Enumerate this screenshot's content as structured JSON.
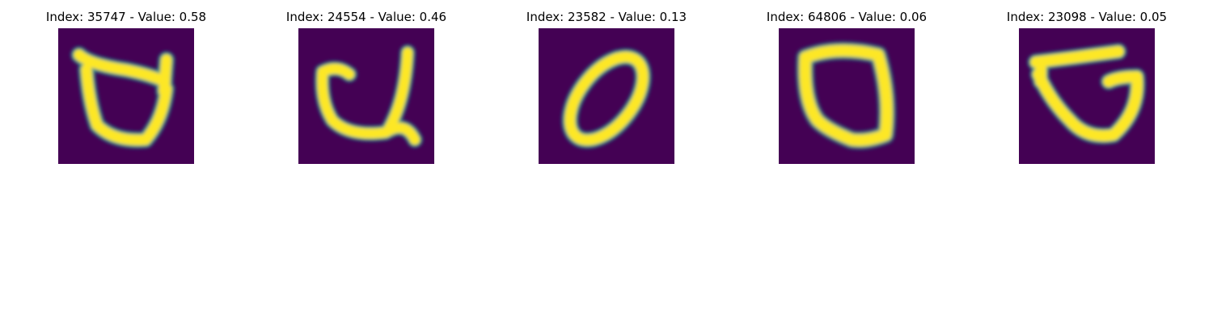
{
  "figure": {
    "colormap": "viridis",
    "background_color": "#440154",
    "stroke_color": "#fde725",
    "panels": [
      {
        "title": "Index: 35747 - Value: 0.58",
        "image_kind": "handwritten-glyph",
        "glyph": "open loop with top bar and right hook"
      },
      {
        "title": "Index: 24554 - Value: 0.46",
        "image_kind": "handwritten-glyph",
        "glyph": "u-shape with tall right stem"
      },
      {
        "title": "Index: 23582 - Value: 0.13",
        "image_kind": "handwritten-glyph",
        "glyph": "slanted zero"
      },
      {
        "title": "Index: 64806 - Value: 0.06",
        "image_kind": "handwritten-glyph",
        "glyph": "rounded zero"
      },
      {
        "title": "Index: 23098 - Value: 0.05",
        "image_kind": "handwritten-glyph",
        "glyph": "loop with top bar and left hook"
      }
    ]
  }
}
